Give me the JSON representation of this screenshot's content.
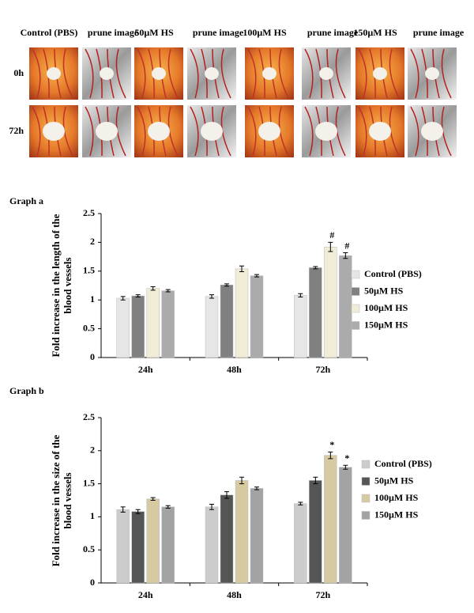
{
  "panel": {
    "columns": [
      "Control (PBS)",
      "prune image",
      "50µM HS",
      "prune image",
      "100µM HS",
      "prune image",
      "150µM HS",
      "prune image"
    ],
    "rows": [
      "0h",
      "72h"
    ]
  },
  "chart_data": [
    {
      "type": "bar",
      "title": "Graph a",
      "ylabel": "Fold increase in the length of the blood vessels",
      "categories": [
        "24h",
        "48h",
        "72h"
      ],
      "series": [
        {
          "name": "Control (PBS)",
          "color": "#e6e6e6",
          "values": [
            1.03,
            1.06,
            1.08
          ],
          "errors": [
            0.03,
            0.03,
            0.03
          ],
          "markers": [
            null,
            null,
            null
          ]
        },
        {
          "name": "50µM HS",
          "color": "#808080",
          "values": [
            1.07,
            1.26,
            1.56
          ],
          "errors": [
            0.02,
            0.02,
            0.02
          ],
          "markers": [
            null,
            null,
            null
          ]
        },
        {
          "name": "100µM HS",
          "color": "#f1ecd6",
          "values": [
            1.2,
            1.54,
            1.92
          ],
          "errors": [
            0.03,
            0.05,
            0.08
          ],
          "markers": [
            null,
            null,
            "#"
          ]
        },
        {
          "name": "150µM HS",
          "color": "#ababab",
          "values": [
            1.16,
            1.42,
            1.77
          ],
          "errors": [
            0.02,
            0.02,
            0.05
          ],
          "markers": [
            null,
            null,
            "#"
          ]
        }
      ],
      "ylim": [
        0,
        2.5
      ],
      "yticks": [
        0,
        0.5,
        1,
        1.5,
        2,
        2.5
      ],
      "grid": false,
      "legend": "right"
    },
    {
      "type": "bar",
      "title": "Graph b",
      "ylabel": "Fold increase in the size of the blood vessels",
      "categories": [
        "24h",
        "48h",
        "72h"
      ],
      "series": [
        {
          "name": "Control (PBS)",
          "color": "#cccccc",
          "values": [
            1.11,
            1.15,
            1.2
          ],
          "errors": [
            0.04,
            0.04,
            0.02
          ],
          "markers": [
            null,
            null,
            null
          ]
        },
        {
          "name": "50µM HS",
          "color": "#555555",
          "values": [
            1.08,
            1.33,
            1.55
          ],
          "errors": [
            0.03,
            0.05,
            0.05
          ],
          "markers": [
            null,
            null,
            null
          ]
        },
        {
          "name": "100µM HS",
          "color": "#d6caa2",
          "values": [
            1.27,
            1.55,
            1.93
          ],
          "errors": [
            0.02,
            0.05,
            0.05
          ],
          "markers": [
            null,
            null,
            "*"
          ]
        },
        {
          "name": "150µM HS",
          "color": "#a3a3a3",
          "values": [
            1.15,
            1.43,
            1.75
          ],
          "errors": [
            0.02,
            0.02,
            0.03
          ],
          "markers": [
            null,
            null,
            "*"
          ]
        }
      ],
      "ylim": [
        0,
        2.5
      ],
      "yticks": [
        0,
        0.5,
        1,
        1.5,
        2,
        2.5
      ],
      "grid": false,
      "legend": "right"
    }
  ]
}
